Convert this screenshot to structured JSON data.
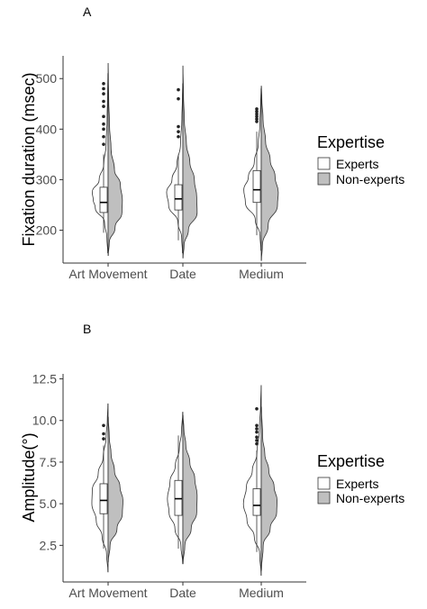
{
  "chart_data": [
    {
      "type": "violin",
      "panel_label": "A",
      "ylabel": "Fixation duration (msec)",
      "xlabel": "",
      "categories": [
        "Art Movement",
        "Date",
        "Medium"
      ],
      "y_ticks": [
        200,
        300,
        400,
        500
      ],
      "ylim": [
        135,
        545
      ],
      "grid": false,
      "legend": {
        "title": "Expertise",
        "placement": "right",
        "entries": [
          {
            "label": "Experts",
            "color": "#ffffff"
          },
          {
            "label": "Non-experts",
            "color": "#bfbfbf"
          }
        ]
      },
      "series": [
        {
          "name": "Experts",
          "fill": "#ffffff",
          "groups": [
            {
              "category": "Art Movement",
              "min": 155,
              "max": 510,
              "profile": [
                [
                  155,
                  0.02
                ],
                [
                  185,
                  0.06
                ],
                [
                  215,
                  0.18
                ],
                [
                  245,
                  0.65
                ],
                [
                  260,
                  0.75
                ],
                [
                  275,
                  0.8
                ],
                [
                  300,
                  0.45
                ],
                [
                  330,
                  0.22
                ],
                [
                  370,
                  0.1
                ],
                [
                  420,
                  0.05
                ],
                [
                  470,
                  0.025
                ],
                [
                  510,
                  0.01
                ]
              ],
              "box": {
                "q1": 235,
                "median": 255,
                "q3": 285,
                "whisker_low": 195,
                "whisker_high": 350
              },
              "outliers": [
                370,
                385,
                400,
                410,
                425,
                445,
                455,
                470,
                480,
                490
              ]
            },
            {
              "category": "Date",
              "min": 155,
              "max": 490,
              "profile": [
                [
                  155,
                  0.02
                ],
                [
                  185,
                  0.06
                ],
                [
                  215,
                  0.25
                ],
                [
                  250,
                  0.72
                ],
                [
                  275,
                  0.82
                ],
                [
                  300,
                  0.55
                ],
                [
                  330,
                  0.3
                ],
                [
                  370,
                  0.12
                ],
                [
                  420,
                  0.05
                ],
                [
                  460,
                  0.025
                ],
                [
                  490,
                  0.01
                ]
              ],
              "box": {
                "q1": 240,
                "median": 262,
                "q3": 290,
                "whisker_low": 180,
                "whisker_high": 350
              },
              "outliers": [
                385,
                395,
                405,
                460,
                478
              ]
            },
            {
              "category": "Medium",
              "min": 160,
              "max": 480,
              "profile": [
                [
                  160,
                  0.02
                ],
                [
                  190,
                  0.06
                ],
                [
                  220,
                  0.3
                ],
                [
                  255,
                  0.8
                ],
                [
                  280,
                  0.88
                ],
                [
                  305,
                  0.65
                ],
                [
                  335,
                  0.35
                ],
                [
                  370,
                  0.15
                ],
                [
                  410,
                  0.07
                ],
                [
                  450,
                  0.03
                ],
                [
                  480,
                  0.01
                ]
              ],
              "box": {
                "q1": 255,
                "median": 280,
                "q3": 318,
                "whisker_low": 190,
                "whisker_high": 395
              },
              "outliers": [
                415,
                420,
                425,
                430,
                435,
                440
              ]
            }
          ]
        },
        {
          "name": "Non-experts",
          "fill": "#bfbfbf",
          "groups": [
            {
              "category": "Art Movement",
              "min": 150,
              "max": 530,
              "profile": [
                [
                  150,
                  0.01
                ],
                [
                  175,
                  0.06
                ],
                [
                  205,
                  0.35
                ],
                [
                  235,
                  0.7
                ],
                [
                  260,
                  0.72
                ],
                [
                  290,
                  0.62
                ],
                [
                  320,
                  0.32
                ],
                [
                  360,
                  0.15
                ],
                [
                  410,
                  0.07
                ],
                [
                  460,
                  0.03
                ],
                [
                  500,
                  0.015
                ],
                [
                  530,
                  0.005
                ]
              ],
              "box": null,
              "outliers": []
            },
            {
              "category": "Date",
              "min": 145,
              "max": 525,
              "profile": [
                [
                  145,
                  0.01
                ],
                [
                  170,
                  0.06
                ],
                [
                  200,
                  0.28
                ],
                [
                  235,
                  0.72
                ],
                [
                  265,
                  0.7
                ],
                [
                  300,
                  0.58
                ],
                [
                  335,
                  0.35
                ],
                [
                  370,
                  0.18
                ],
                [
                  420,
                  0.07
                ],
                [
                  470,
                  0.03
                ],
                [
                  525,
                  0.005
                ]
              ],
              "box": null,
              "outliers": []
            },
            {
              "category": "Medium",
              "min": 140,
              "max": 485,
              "profile": [
                [
                  140,
                  0.01
                ],
                [
                  170,
                  0.06
                ],
                [
                  210,
                  0.35
                ],
                [
                  250,
                  0.82
                ],
                [
                  275,
                  0.86
                ],
                [
                  305,
                  0.7
                ],
                [
                  340,
                  0.45
                ],
                [
                  375,
                  0.22
                ],
                [
                  420,
                  0.09
                ],
                [
                  460,
                  0.03
                ],
                [
                  485,
                  0.01
                ]
              ],
              "box": null,
              "outliers": []
            }
          ]
        }
      ]
    },
    {
      "type": "violin",
      "panel_label": "B",
      "ylabel": "Amplitude(°)",
      "xlabel": "",
      "categories": [
        "Art Movement",
        "Date",
        "Medium"
      ],
      "y_ticks": [
        2.5,
        5.0,
        7.5,
        10.0,
        12.5
      ],
      "y_tick_labels": [
        "2.5",
        "5.0",
        "7.5",
        "10.0",
        "12.5"
      ],
      "ylim": [
        0.3,
        12.8
      ],
      "grid": false,
      "legend": {
        "title": "Expertise",
        "placement": "right",
        "entries": [
          {
            "label": "Experts",
            "color": "#ffffff"
          },
          {
            "label": "Non-experts",
            "color": "#bfbfbf"
          }
        ]
      },
      "series": [
        {
          "name": "Experts",
          "fill": "#ffffff",
          "groups": [
            {
              "category": "Art Movement",
              "min": 0.9,
              "max": 11.0,
              "profile": [
                [
                  0.9,
                  0.01
                ],
                [
                  2,
                  0.08
                ],
                [
                  3,
                  0.3
                ],
                [
                  4,
                  0.6
                ],
                [
                  5,
                  0.82
                ],
                [
                  5.8,
                  0.8
                ],
                [
                  6.8,
                  0.5
                ],
                [
                  7.8,
                  0.25
                ],
                [
                  9,
                  0.1
                ],
                [
                  10,
                  0.04
                ],
                [
                  11,
                  0.01
                ]
              ],
              "box": {
                "q1": 4.4,
                "median": 5.2,
                "q3": 6.2,
                "whisker_low": 2.3,
                "whisker_high": 8.5
              },
              "outliers": [
                8.9,
                9.2,
                9.7
              ]
            },
            {
              "category": "Date",
              "min": 1.4,
              "max": 10.5,
              "profile": [
                [
                  1.4,
                  0.01
                ],
                [
                  2.5,
                  0.1
                ],
                [
                  3.5,
                  0.4
                ],
                [
                  4.5,
                  0.7
                ],
                [
                  5.3,
                  0.78
                ],
                [
                  6.3,
                  0.65
                ],
                [
                  7.3,
                  0.38
                ],
                [
                  8.3,
                  0.18
                ],
                [
                  9.3,
                  0.07
                ],
                [
                  10.5,
                  0.01
                ]
              ],
              "box": {
                "q1": 4.3,
                "median": 5.3,
                "q3": 6.4,
                "whisker_low": 2.3,
                "whisker_high": 9.1
              },
              "outliers": []
            },
            {
              "category": "Medium",
              "min": 0.7,
              "max": 12.1,
              "profile": [
                [
                  0.7,
                  0.01
                ],
                [
                  2,
                  0.08
                ],
                [
                  3,
                  0.35
                ],
                [
                  4,
                  0.72
                ],
                [
                  5,
                  0.9
                ],
                [
                  6,
                  0.75
                ],
                [
                  7,
                  0.45
                ],
                [
                  8,
                  0.22
                ],
                [
                  9.5,
                  0.09
                ],
                [
                  11,
                  0.03
                ],
                [
                  12.1,
                  0.005
                ]
              ],
              "box": {
                "q1": 4.3,
                "median": 4.9,
                "q3": 5.9,
                "whisker_low": 2.1,
                "whisker_high": 8.2
              },
              "outliers": [
                8.6,
                8.8,
                9.0,
                9.3,
                9.5,
                9.7,
                10.7
              ]
            }
          ]
        },
        {
          "name": "Non-experts",
          "fill": "#bfbfbf",
          "groups": [
            {
              "category": "Art Movement",
              "min": 1.5,
              "max": 10.2,
              "profile": [
                [
                  1.5,
                  0.01
                ],
                [
                  2.5,
                  0.1
                ],
                [
                  3.5,
                  0.45
                ],
                [
                  4.4,
                  0.72
                ],
                [
                  5.2,
                  0.75
                ],
                [
                  6,
                  0.6
                ],
                [
                  7,
                  0.32
                ],
                [
                  8,
                  0.15
                ],
                [
                  9,
                  0.06
                ],
                [
                  10.2,
                  0.01
                ]
              ],
              "box": null,
              "outliers": []
            },
            {
              "category": "Date",
              "min": 1.4,
              "max": 10.3,
              "profile": [
                [
                  1.4,
                  0.01
                ],
                [
                  2.5,
                  0.1
                ],
                [
                  3.5,
                  0.42
                ],
                [
                  4.5,
                  0.7
                ],
                [
                  5.5,
                  0.72
                ],
                [
                  6.5,
                  0.6
                ],
                [
                  7.5,
                  0.35
                ],
                [
                  8.5,
                  0.15
                ],
                [
                  9.5,
                  0.05
                ],
                [
                  10.3,
                  0.01
                ]
              ],
              "box": null,
              "outliers": []
            },
            {
              "category": "Medium",
              "min": 1.0,
              "max": 10.8,
              "profile": [
                [
                  1,
                  0.01
                ],
                [
                  2.5,
                  0.1
                ],
                [
                  3.5,
                  0.45
                ],
                [
                  4.5,
                  0.78
                ],
                [
                  5.2,
                  0.8
                ],
                [
                  6,
                  0.65
                ],
                [
                  7,
                  0.38
                ],
                [
                  8,
                  0.18
                ],
                [
                  9,
                  0.07
                ],
                [
                  10.8,
                  0.01
                ]
              ],
              "box": null,
              "outliers": []
            }
          ]
        }
      ]
    }
  ]
}
